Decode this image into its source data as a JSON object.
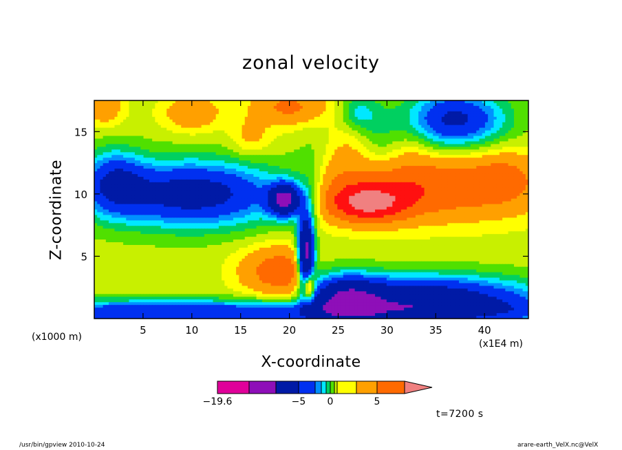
{
  "chart_data": {
    "type": "heatmap",
    "title": "zonal velocity",
    "xlabel": "X-coordinate",
    "ylabel": "Z-coordinate",
    "x_unit_label": "(x1E4 m)",
    "y_unit_label": "(x1000 m)",
    "x_range": [
      0,
      44.5
    ],
    "y_range": [
      0,
      17.5
    ],
    "x_ticks": [
      5,
      10,
      15,
      20,
      25,
      30,
      35,
      40
    ],
    "y_ticks": [
      5,
      10,
      15
    ],
    "colorbar": {
      "labels": [
        {
          "value": -19.6,
          "text": "−19.6"
        },
        {
          "value": -5,
          "text": "−5"
        },
        {
          "value": 0,
          "text": "0"
        },
        {
          "value": 5,
          "text": "5"
        }
      ],
      "levels": [
        -19.6,
        -15,
        -10,
        -5,
        -3,
        -2,
        -1,
        0,
        1,
        2,
        3,
        5,
        7.5,
        10
      ],
      "colors": [
        "#e0009a",
        "#8e0fb8",
        "#001aa6",
        "#0030f0",
        "#0090ff",
        "#00e8ff",
        "#00d060",
        "#50e000",
        "#c8f000",
        "#ffff00",
        "#ffa000",
        "#ff6a00",
        "#ff1010",
        "#f08080"
      ]
    },
    "time_label": "t=7200 s"
  },
  "footer": {
    "left": "/usr/bin/gpview   2010-10-24",
    "right": "arare-earth_VelX.nc@VelX"
  }
}
